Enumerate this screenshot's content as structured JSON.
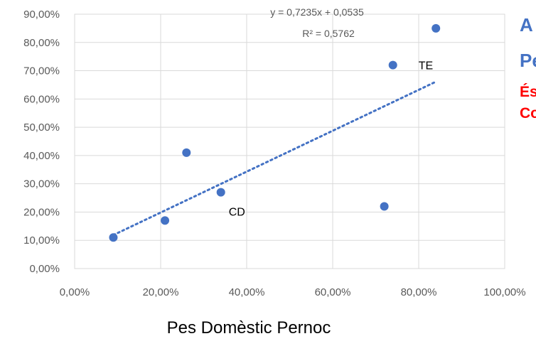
{
  "chart_data": {
    "type": "scatter",
    "title": "",
    "xlabel": "Pes Domèstic Pernoc",
    "ylabel": "",
    "xlim": [
      0,
      1
    ],
    "ylim": [
      0,
      0.9
    ],
    "x_ticks": [
      "0,00%",
      "20,00%",
      "40,00%",
      "60,00%",
      "80,00%",
      "100,00%"
    ],
    "y_ticks": [
      "0,00%",
      "10,00%",
      "20,00%",
      "30,00%",
      "40,00%",
      "50,00%",
      "60,00%",
      "70,00%",
      "80,00%",
      "90,00%"
    ],
    "grid": true,
    "series": [
      {
        "color": "#4472c4",
        "points": [
          {
            "x": 0.09,
            "y": 0.11
          },
          {
            "x": 0.21,
            "y": 0.17
          },
          {
            "x": 0.26,
            "y": 0.41
          },
          {
            "x": 0.34,
            "y": 0.27
          },
          {
            "x": 0.72,
            "y": 0.22
          },
          {
            "x": 0.74,
            "y": 0.72
          },
          {
            "x": 0.84,
            "y": 0.85
          }
        ]
      }
    ],
    "point_labels": [
      {
        "text": "CD",
        "x": 0.34,
        "y": 0.27
      },
      {
        "text": "TE",
        "x": 0.74,
        "y": 0.72
      }
    ],
    "trendline": {
      "type": "linear",
      "slope": 0.7235,
      "intercept": 0.0535,
      "x_range": [
        0.09,
        0.84
      ],
      "style": "dotted",
      "color": "#4472c4",
      "equation": "y = 0,7235x + 0,0535",
      "r2": "R² = 0,5762"
    }
  },
  "side_text": [
    {
      "text": "A",
      "color": "#4472c4"
    },
    {
      "text": "Pe",
      "color": "#4472c4"
    },
    {
      "text": "És",
      "color": "#ff0000"
    },
    {
      "text": "Co",
      "color": "#ff0000"
    }
  ]
}
